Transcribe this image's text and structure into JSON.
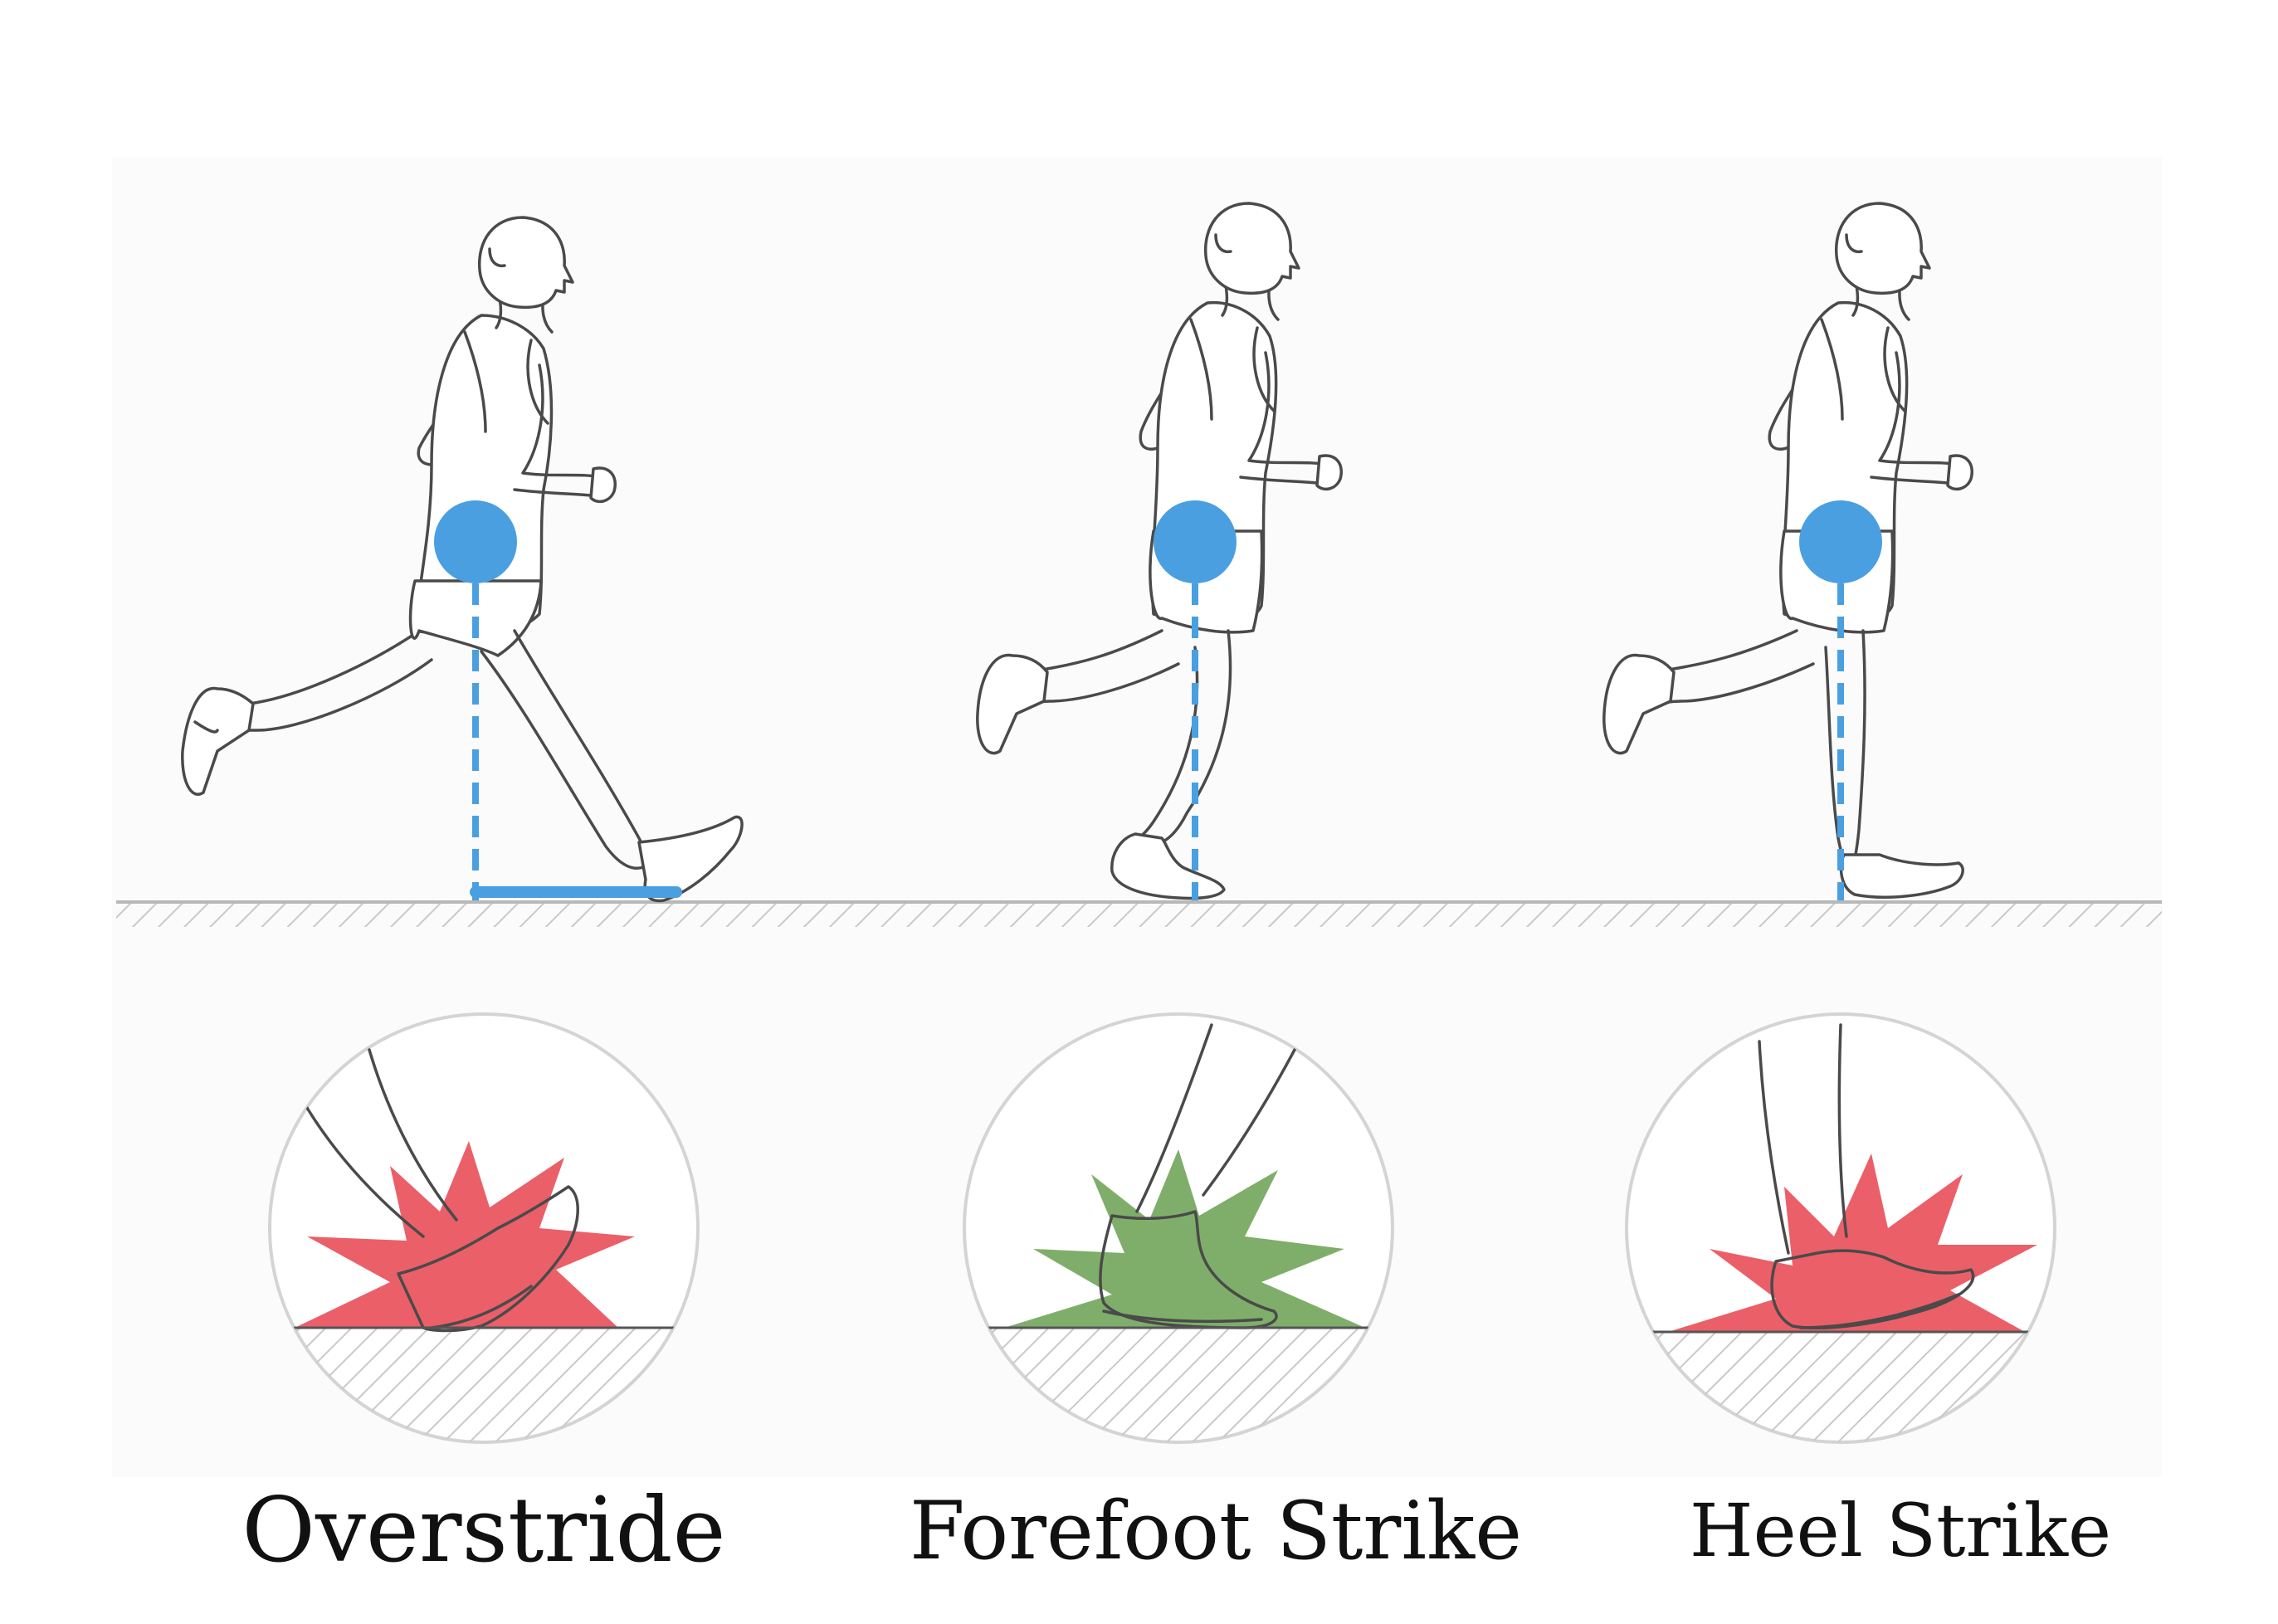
{
  "labels": {
    "overstride": "Overstride",
    "forefoot": "Forefoot Strike",
    "heel": "Heel Strike"
  },
  "colors": {
    "marker_blue": "#4a9fe0",
    "impact_red": "#e8434f",
    "impact_green": "#5f9a45",
    "ground_line": "#b8b8b8",
    "outline": "#4a4a4a",
    "panel_bg": "#fbfbfb"
  }
}
